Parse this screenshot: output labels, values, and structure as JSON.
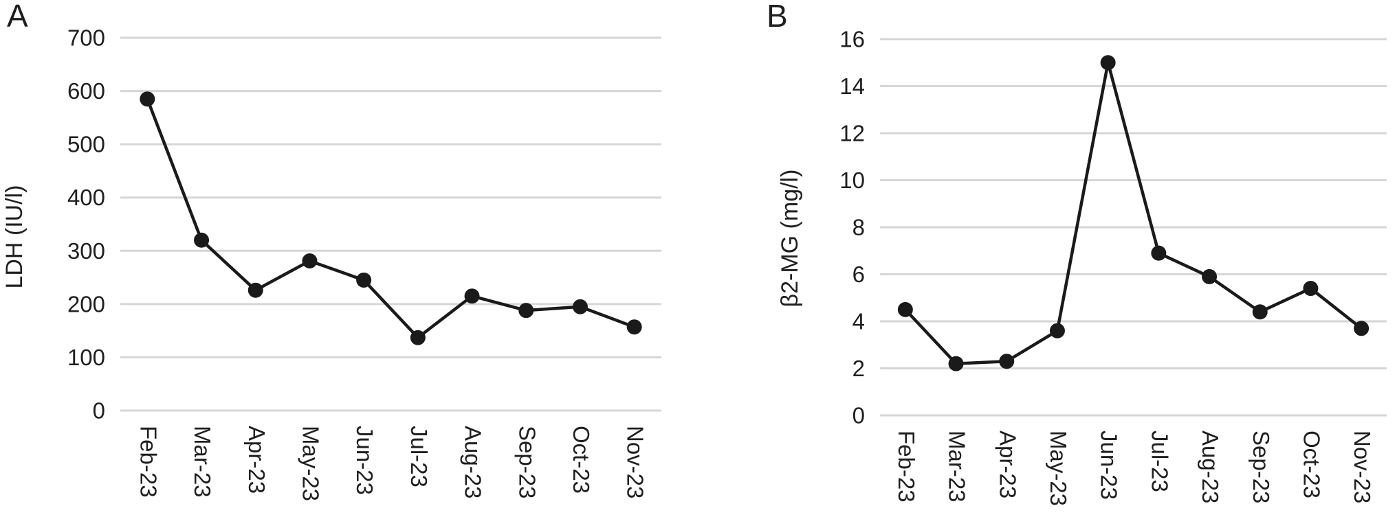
{
  "figure": {
    "background_color": "#ffffff",
    "text_color": "#1f1f1f",
    "panel_letters": [
      "A",
      "B"
    ]
  },
  "chart_data": [
    {
      "type": "line",
      "panel_label": "A",
      "title": "",
      "xlabel": "",
      "ylabel": "LDH (IU/l)",
      "categories": [
        "Feb-23",
        "Mar-23",
        "Apr-23",
        "May-23",
        "Jun-23",
        "Jul-23",
        "Aug-23",
        "Sep-23",
        "Oct-23",
        "Nov-23"
      ],
      "values": [
        585,
        320,
        226,
        281,
        245,
        137,
        215,
        188,
        195,
        157
      ],
      "ylim": [
        0,
        700
      ],
      "yticks": [
        0,
        100,
        200,
        300,
        400,
        500,
        600,
        700
      ],
      "grid": true,
      "legend": "none",
      "marker": "circle",
      "line_color": "#1a1a1a",
      "marker_color": "#1a1a1a",
      "grid_color": "#d6d6d6",
      "x_label_rotation_deg": 90
    },
    {
      "type": "line",
      "panel_label": "B",
      "title": "",
      "xlabel": "",
      "ylabel": "β2-MG (mg/l)",
      "categories": [
        "Feb-23",
        "Mar-23",
        "Apr-23",
        "May-23",
        "Jun-23",
        "Jul-23",
        "Aug-23",
        "Sep-23",
        "Oct-23",
        "Nov-23"
      ],
      "values": [
        4.5,
        2.2,
        2.3,
        3.6,
        15.0,
        6.9,
        5.9,
        4.4,
        5.4,
        3.7
      ],
      "ylim": [
        0,
        16
      ],
      "yticks": [
        0,
        2,
        4,
        6,
        8,
        10,
        12,
        14,
        16
      ],
      "grid": true,
      "legend": "none",
      "marker": "circle",
      "line_color": "#1a1a1a",
      "marker_color": "#1a1a1a",
      "grid_color": "#d6d6d6",
      "x_label_rotation_deg": 90
    }
  ]
}
